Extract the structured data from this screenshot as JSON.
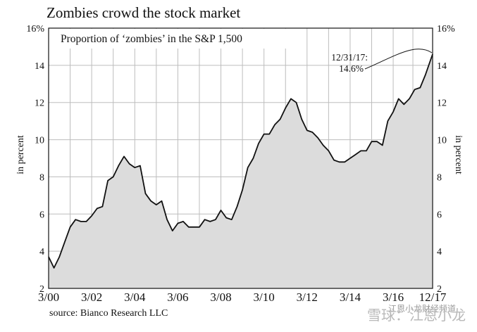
{
  "chart_data": {
    "type": "area",
    "title": "Zombies crowd the stock market",
    "subtitle": "Proportion of ‘zombies’ in the S&P 1,500",
    "ylabel_left": "in percent",
    "ylabel_right": "in percent",
    "x_tick_labels": [
      "3/00",
      "3/02",
      "3/04",
      "3/06",
      "3/08",
      "3/10",
      "3/12",
      "3/14",
      "3/16",
      "12/17"
    ],
    "x_tick_positions": [
      2000.17,
      2002.17,
      2004.17,
      2006.17,
      2008.17,
      2010.17,
      2012.17,
      2014.17,
      2016.17,
      2018.0
    ],
    "y_tick_labels": [
      "2",
      "4",
      "6",
      "8",
      "10",
      "12",
      "14",
      "16%"
    ],
    "y_tick_values": [
      2,
      4,
      6,
      8,
      10,
      12,
      14,
      16
    ],
    "xlim": [
      2000.17,
      2018.0
    ],
    "ylim": [
      2,
      16
    ],
    "grid": true,
    "annotation": {
      "line1": "12/31/17:",
      "line2": "14.6%",
      "x": 2018.0,
      "y": 14.6
    },
    "fill_color": "#dcdcdc",
    "line_color": "#111111",
    "series": [
      {
        "x": [
          2000.17,
          2000.42,
          2000.67,
          2000.92,
          2001.17,
          2001.42,
          2001.67,
          2001.92,
          2002.17,
          2002.42,
          2002.67,
          2002.92,
          2003.17,
          2003.42,
          2003.67,
          2003.92,
          2004.17,
          2004.42,
          2004.67,
          2004.92,
          2005.17,
          2005.42,
          2005.67,
          2005.92,
          2006.17,
          2006.42,
          2006.67,
          2006.92,
          2007.17,
          2007.42,
          2007.67,
          2007.92,
          2008.17,
          2008.42,
          2008.67,
          2008.92,
          2009.17,
          2009.42,
          2009.67,
          2009.92,
          2010.17,
          2010.42,
          2010.67,
          2010.92,
          2011.17,
          2011.42,
          2011.67,
          2011.92,
          2012.17,
          2012.42,
          2012.67,
          2012.92,
          2013.17,
          2013.42,
          2013.67,
          2013.92,
          2014.17,
          2014.42,
          2014.67,
          2014.92,
          2015.17,
          2015.42,
          2015.67,
          2015.92,
          2016.17,
          2016.42,
          2016.67,
          2016.92,
          2017.17,
          2017.42,
          2017.67,
          2018.0
        ],
        "y": [
          3.7,
          3.1,
          3.7,
          4.5,
          5.3,
          5.7,
          5.6,
          5.6,
          5.9,
          6.3,
          6.4,
          7.8,
          8.0,
          8.6,
          9.1,
          8.7,
          8.5,
          8.6,
          7.1,
          6.7,
          6.5,
          6.7,
          5.7,
          5.1,
          5.5,
          5.6,
          5.3,
          5.3,
          5.3,
          5.7,
          5.6,
          5.7,
          6.2,
          5.8,
          5.7,
          6.4,
          7.3,
          8.5,
          9.0,
          9.8,
          10.3,
          10.3,
          10.8,
          11.1,
          11.7,
          12.2,
          12.0,
          11.1,
          10.5,
          10.4,
          10.1,
          9.7,
          9.4,
          8.9,
          8.8,
          8.8,
          9.0,
          9.2,
          9.4,
          9.4,
          9.9,
          9.9,
          9.7,
          11.0,
          11.5,
          12.2,
          11.9,
          12.2,
          12.7,
          12.8,
          13.5,
          14.6
        ]
      }
    ]
  },
  "source": "source: Bianco Research LLC",
  "watermark": "雪球：江恩小龙",
  "watermark_sub": "江恩小龙财经频道"
}
